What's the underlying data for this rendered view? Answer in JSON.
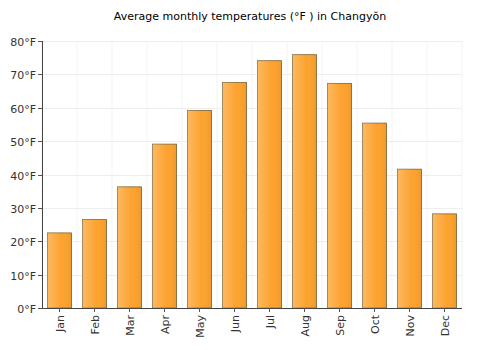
{
  "chart_data": {
    "type": "bar",
    "title": "Average monthly temperatures (°F ) in Changyŏn",
    "categories": [
      "Jan",
      "Feb",
      "Mar",
      "Apr",
      "May",
      "Jun",
      "Jul",
      "Aug",
      "Sep",
      "Oct",
      "Nov",
      "Dec"
    ],
    "values": [
      22.5,
      26.5,
      36.3,
      49.1,
      59.2,
      67.6,
      74.1,
      75.9,
      67.3,
      55.4,
      41.6,
      28.2
    ],
    "color": "#fca22e",
    "ylim": [
      0,
      80
    ],
    "yticks": [
      {
        "value": 0,
        "label": "0°F"
      },
      {
        "value": 10,
        "label": "10°F"
      },
      {
        "value": 20,
        "label": "20°F"
      },
      {
        "value": 30,
        "label": "30°F"
      },
      {
        "value": 40,
        "label": "40°F"
      },
      {
        "value": 50,
        "label": "50°F"
      },
      {
        "value": 60,
        "label": "60°F"
      },
      {
        "value": 70,
        "label": "70°F"
      },
      {
        "value": 80,
        "label": "80°F"
      }
    ],
    "grid": true
  }
}
